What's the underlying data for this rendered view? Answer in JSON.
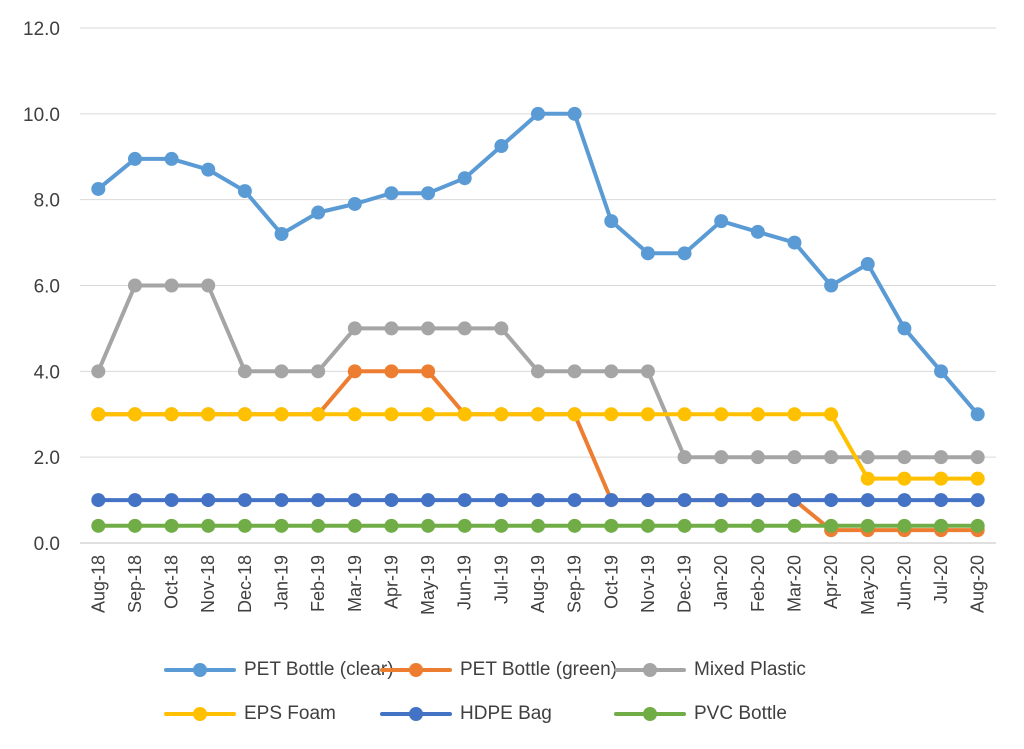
{
  "chart_data": {
    "type": "line",
    "title": "",
    "xlabel": "",
    "ylabel": "",
    "ylim": [
      0,
      12
    ],
    "yticks": [
      "0.0",
      "2.0",
      "4.0",
      "6.0",
      "8.0",
      "10.0",
      "12.0"
    ],
    "grid": "horizontal",
    "legend_position": "bottom",
    "categories": [
      "Aug-18",
      "Sep-18",
      "Oct-18",
      "Nov-18",
      "Dec-18",
      "Jan-19",
      "Feb-19",
      "Mar-19",
      "Apr-19",
      "May-19",
      "Jun-19",
      "Jul-19",
      "Aug-19",
      "Sep-19",
      "Oct-19",
      "Nov-19",
      "Dec-19",
      "Jan-20",
      "Feb-20",
      "Mar-20",
      "Apr-20",
      "May-20",
      "Jun-20",
      "Jul-20",
      "Aug-20"
    ],
    "series": [
      {
        "name": "PET Bottle (clear)",
        "color": "#5b9bd5",
        "values": [
          8.25,
          8.95,
          8.95,
          8.7,
          8.2,
          7.2,
          7.7,
          7.9,
          8.15,
          8.15,
          8.5,
          9.25,
          10.0,
          10.0,
          7.5,
          6.75,
          6.75,
          7.5,
          7.25,
          7.0,
          6.0,
          6.5,
          5.0,
          4.0,
          3.0
        ]
      },
      {
        "name": "PET Bottle (green)",
        "color": "#ed7d31",
        "values": [
          3,
          3,
          3,
          3,
          3,
          3,
          3,
          4,
          4,
          4,
          3,
          3,
          3,
          3,
          1,
          1,
          1,
          1,
          1,
          1,
          0.3,
          0.3,
          0.3,
          0.3,
          0.3
        ]
      },
      {
        "name": "Mixed Plastic",
        "color": "#a5a5a5",
        "values": [
          4,
          6,
          6,
          6,
          4,
          4,
          4,
          5,
          5,
          5,
          5,
          5,
          4,
          4,
          4,
          4,
          2,
          2,
          2,
          2,
          2,
          2,
          2,
          2,
          2
        ]
      },
      {
        "name": "EPS Foam",
        "color": "#ffc000",
        "values": [
          3,
          3,
          3,
          3,
          3,
          3,
          3,
          3,
          3,
          3,
          3,
          3,
          3,
          3,
          3,
          3,
          3,
          3,
          3,
          3,
          3,
          1.5,
          1.5,
          1.5,
          1.5
        ]
      },
      {
        "name": "HDPE Bag",
        "color": "#4472c4",
        "values": [
          1,
          1,
          1,
          1,
          1,
          1,
          1,
          1,
          1,
          1,
          1,
          1,
          1,
          1,
          1,
          1,
          1,
          1,
          1,
          1,
          1,
          1,
          1,
          1,
          1
        ]
      },
      {
        "name": "PVC Bottle",
        "color": "#70ad47",
        "values": [
          0.4,
          0.4,
          0.4,
          0.4,
          0.4,
          0.4,
          0.4,
          0.4,
          0.4,
          0.4,
          0.4,
          0.4,
          0.4,
          0.4,
          0.4,
          0.4,
          0.4,
          0.4,
          0.4,
          0.4,
          0.4,
          0.4,
          0.4,
          0.4,
          0.4
        ]
      }
    ]
  }
}
